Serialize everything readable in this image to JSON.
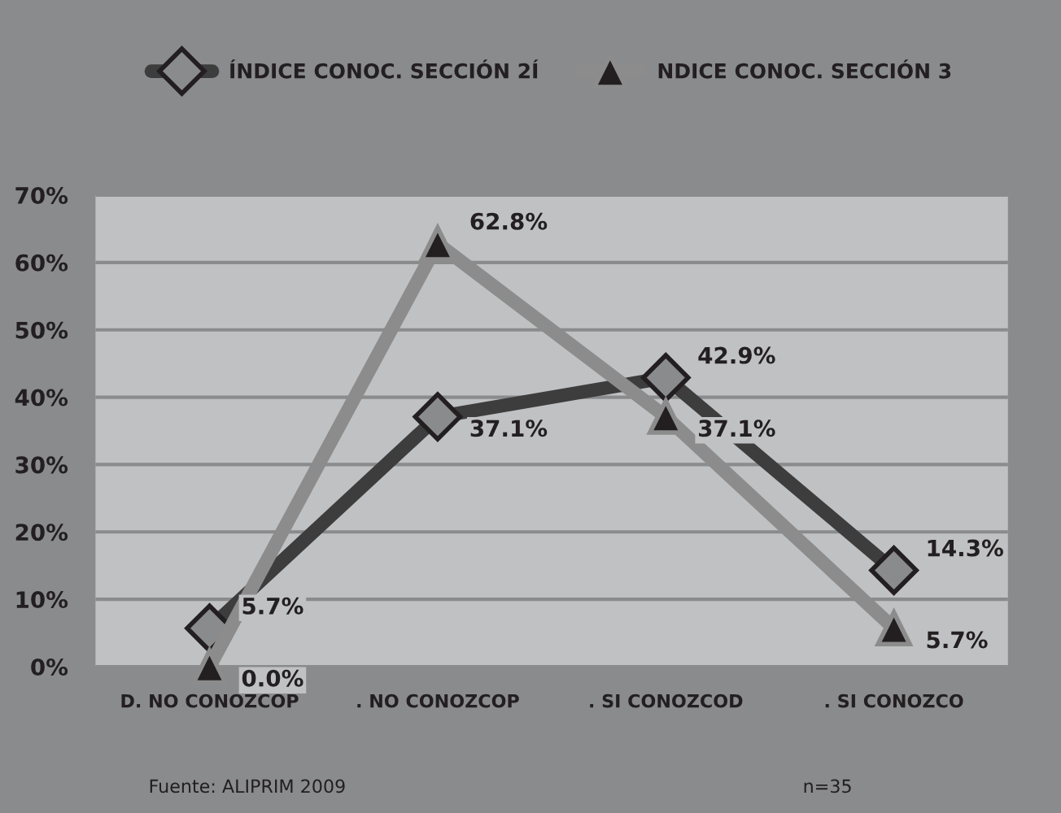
{
  "chart_data": {
    "type": "line",
    "categories": [
      "D. NO CONOZCOP",
      ". NO CONOZCOP",
      ". SI CONOZCOD",
      ". SI CONOZCO"
    ],
    "series": [
      {
        "name": "ÍNDICE CONOC. SECCIÓN 2Í",
        "color": "#3d3d3d",
        "marker": "diamond",
        "values": [
          5.7,
          37.1,
          42.9,
          14.3
        ],
        "value_labels": [
          "5.7%",
          "37.1%",
          "42.9%",
          "14.3%"
        ]
      },
      {
        "name": "NDICE CONOC. SECCIÓN 3",
        "color": "#8c8c8c",
        "marker": "triangle",
        "values": [
          0.0,
          62.8,
          37.1,
          5.7
        ],
        "value_labels": [
          "0.0%",
          "62.8%",
          "37.1%",
          "5.7%"
        ]
      }
    ],
    "ylim": [
      0,
      70
    ],
    "yticks": [
      {
        "value": 0,
        "label": "0%"
      },
      {
        "value": 10,
        "label": "10%"
      },
      {
        "value": 20,
        "label": "20%"
      },
      {
        "value": 30,
        "label": "30%"
      },
      {
        "value": 40,
        "label": "40%"
      },
      {
        "value": 50,
        "label": "50%"
      },
      {
        "value": 60,
        "label": "60%"
      },
      {
        "value": 70,
        "label": "70%"
      }
    ],
    "grid": "y",
    "legend": "top",
    "line_style": "solid",
    "annotations": [
      "Fuente: ALIPRIM 2009",
      "n=35"
    ]
  }
}
